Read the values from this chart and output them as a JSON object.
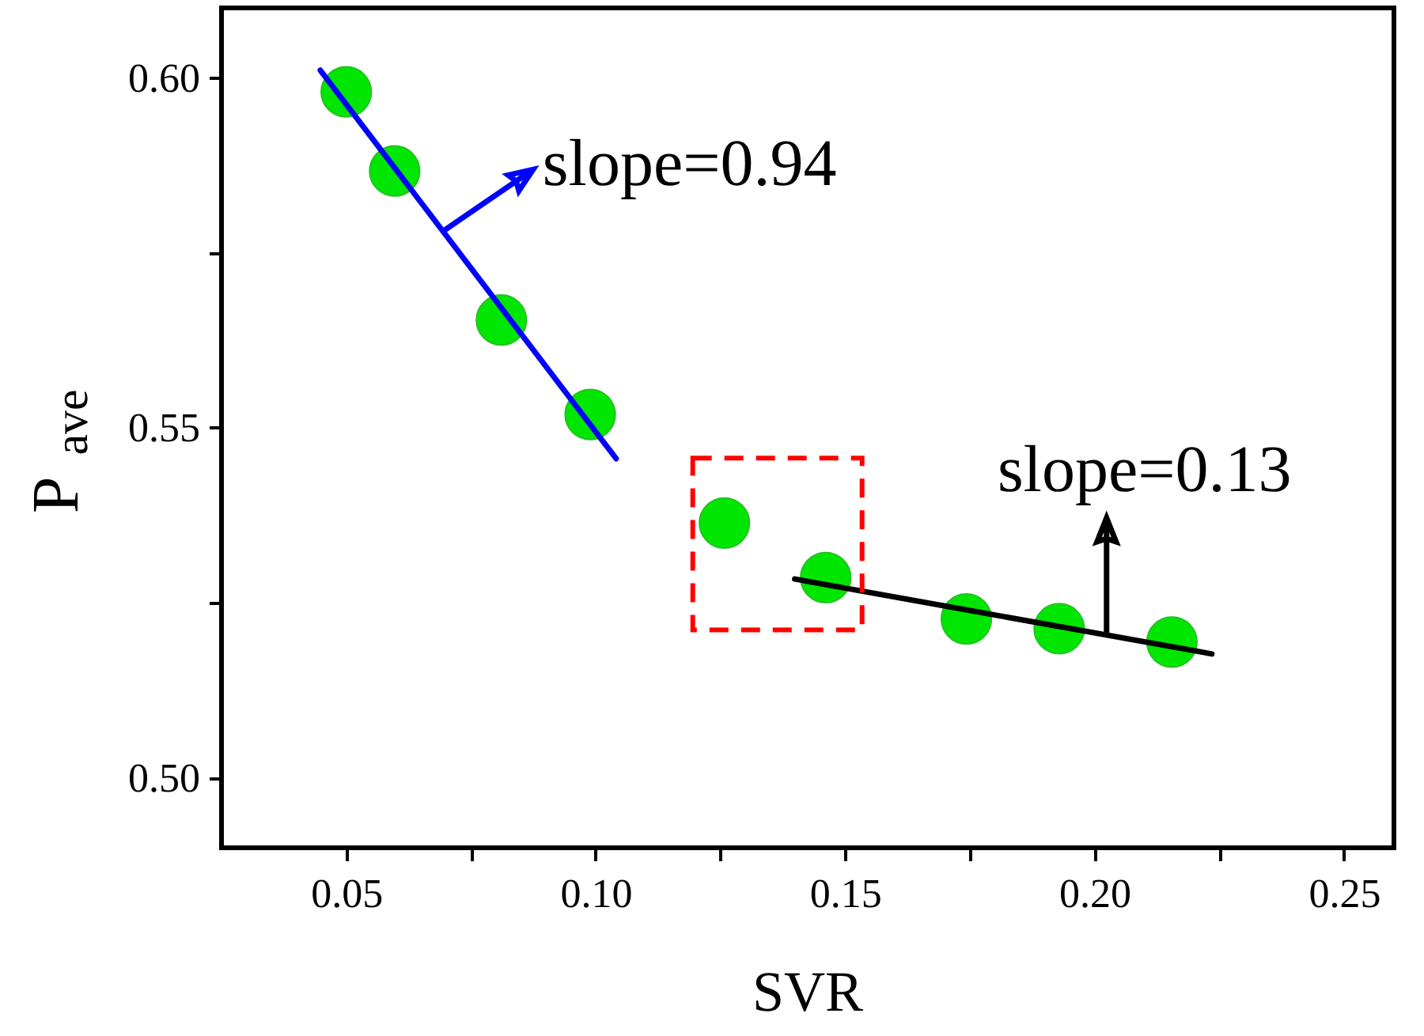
{
  "chart_data": {
    "type": "scatter",
    "xlabel": "SVR",
    "ylabel": "P$_{ave}$",
    "xlim": [
      0.025,
      0.26
    ],
    "ylim": [
      0.49,
      0.61
    ],
    "xticks": [
      {
        "value": 0.05,
        "label": "0.05"
      },
      {
        "value": 0.075,
        "label": null
      },
      {
        "value": 0.1,
        "label": "0.10"
      },
      {
        "value": 0.125,
        "label": null
      },
      {
        "value": 0.15,
        "label": "0.15"
      },
      {
        "value": 0.175,
        "label": null
      },
      {
        "value": 0.2,
        "label": "0.20"
      },
      {
        "value": 0.225,
        "label": null
      },
      {
        "value": 0.25,
        "label": "0.25"
      }
    ],
    "yticks": [
      {
        "value": 0.5,
        "label": "0.50"
      },
      {
        "value": 0.525,
        "label": null
      },
      {
        "value": 0.55,
        "label": "0.55"
      },
      {
        "value": 0.575,
        "label": null
      },
      {
        "value": 0.6,
        "label": "0.60"
      }
    ],
    "series": [
      {
        "marker": "circle",
        "color": "#00e600",
        "x": [
          0.05,
          0.0597,
          0.0811,
          0.0989,
          0.1258,
          0.1461,
          0.1743,
          0.1929,
          0.2155
        ],
        "values": [
          0.598,
          0.5867,
          0.5654,
          0.5519,
          0.5364,
          0.5286,
          0.5227,
          0.5213,
          0.5194
        ]
      },
      {
        "type": "line",
        "color": "#0000ff",
        "x": [
          0.0448,
          0.1041
        ],
        "values": [
          0.6011,
          0.5456
        ]
      },
      {
        "type": "line",
        "color": "#000000",
        "x": [
          0.1399,
          0.2235
        ],
        "values": [
          0.5284,
          0.5177
        ]
      }
    ],
    "annotations": [
      {
        "text": "slope=0.94",
        "x": 0.0694,
        "y": 0.5781
      },
      {
        "text": "slope=0.13",
        "x": 0.2024,
        "y": 0.5204
      }
    ]
  }
}
